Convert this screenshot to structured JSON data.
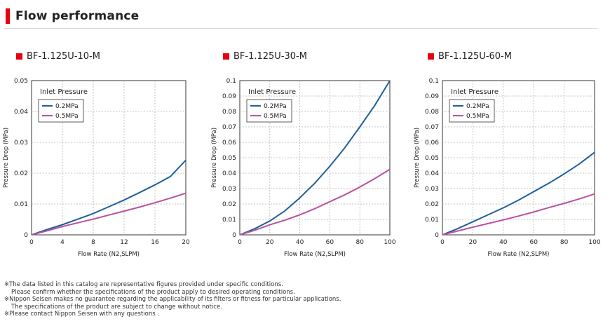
{
  "header": {
    "title": "Flow performance"
  },
  "colors": {
    "accent": "#e60012",
    "series_02": "#1f5f99",
    "series_05": "#b9529f"
  },
  "chart_data": [
    {
      "type": "line",
      "title": "BF-1.125U-10-M",
      "xlabel": "Flow Rate (N2,SLPM)",
      "ylabel": "Pressure Drop (MPa)",
      "xlim": [
        0,
        20
      ],
      "ylim": [
        0,
        0.05
      ],
      "xticks": [
        "0",
        "4",
        "8",
        "12",
        "16",
        "20"
      ],
      "yticks": [
        "0",
        "0.01",
        "0.02",
        "0.03",
        "0.04",
        "0.05"
      ],
      "grid": true,
      "legend": {
        "title": "Inlet Pressure",
        "placement": "top-left"
      },
      "series": [
        {
          "name": "0.2MPa",
          "x": [
            0,
            2,
            4,
            6,
            8,
            10,
            12,
            14,
            16,
            18,
            20
          ],
          "y": [
            0,
            0.0017,
            0.0033,
            0.0051,
            0.0069,
            0.0091,
            0.0113,
            0.0137,
            0.0162,
            0.0189,
            0.0242
          ]
        },
        {
          "name": "0.5MPa",
          "x": [
            0,
            2,
            4,
            6,
            8,
            10,
            12,
            14,
            16,
            18,
            20
          ],
          "y": [
            0,
            0.0013,
            0.0027,
            0.0039,
            0.0051,
            0.0064,
            0.0077,
            0.009,
            0.0104,
            0.0119,
            0.0135
          ]
        }
      ]
    },
    {
      "type": "line",
      "title": "BF-1.125U-30-M",
      "xlabel": "Flow Rate (N2,SLPM)",
      "ylabel": "Pressure Drop (MPa)",
      "xlim": [
        0,
        100
      ],
      "ylim": [
        0,
        0.1
      ],
      "xticks": [
        "0",
        "20",
        "40",
        "60",
        "80",
        "100"
      ],
      "yticks": [
        "0",
        "0.01",
        "0.02",
        "0.03",
        "0.04",
        "0.05",
        "0.06",
        "0.07",
        "0.08",
        "0.09",
        "0.1"
      ],
      "grid": true,
      "legend": {
        "title": "Inlet Pressure",
        "placement": "top-left"
      },
      "series": [
        {
          "name": "0.2MPa",
          "x": [
            0,
            10,
            20,
            30,
            40,
            50,
            60,
            70,
            80,
            90,
            100
          ],
          "y": [
            0,
            0.004,
            0.009,
            0.0155,
            0.024,
            0.0335,
            0.0445,
            0.0565,
            0.07,
            0.084,
            0.1
          ]
        },
        {
          "name": "0.5MPa",
          "x": [
            0,
            10,
            20,
            30,
            40,
            50,
            60,
            70,
            80,
            90,
            100
          ],
          "y": [
            0,
            0.003,
            0.0065,
            0.0095,
            0.013,
            0.017,
            0.0215,
            0.026,
            0.031,
            0.0365,
            0.0425
          ]
        }
      ]
    },
    {
      "type": "line",
      "title": "BF-1.125U-60-M",
      "xlabel": "Flow Rate (N2,SLPM)",
      "ylabel": "Pressure Drop (MPa)",
      "xlim": [
        0,
        100
      ],
      "ylim": [
        0,
        0.1
      ],
      "xticks": [
        "0",
        "20",
        "40",
        "60",
        "80",
        "100"
      ],
      "yticks": [
        "0",
        "0.01",
        "0.02",
        "0.03",
        "0.04",
        "0.05",
        "0.06",
        "0.07",
        "0.08",
        "0.09",
        "0.1"
      ],
      "grid": true,
      "legend": {
        "title": "Inlet Pressure",
        "placement": "top-left"
      },
      "series": [
        {
          "name": "0.2MPa",
          "x": [
            0,
            10,
            20,
            30,
            40,
            50,
            60,
            70,
            80,
            90,
            100
          ],
          "y": [
            0,
            0.004,
            0.0085,
            0.013,
            0.0175,
            0.0225,
            0.028,
            0.0335,
            0.0395,
            0.046,
            0.0535
          ]
        },
        {
          "name": "0.5MPa",
          "x": [
            0,
            10,
            20,
            30,
            40,
            50,
            60,
            70,
            80,
            90,
            100
          ],
          "y": [
            0,
            0.0025,
            0.005,
            0.0073,
            0.0097,
            0.0122,
            0.0148,
            0.0177,
            0.0204,
            0.0233,
            0.0265
          ]
        }
      ]
    }
  ],
  "notes": [
    "※The data listed in this catalog are representative figures provided under specific conditions.",
    "Please confirm whether the specifications of the product apply to desired operating conditions.",
    "※Nippon Seisen makes no guarantee regarding the applicability of its filters or fitness for particular applications.",
    "The specifications of the product are subject to change without notice.",
    "※Please contact Nippon Seisen with any questions ."
  ]
}
